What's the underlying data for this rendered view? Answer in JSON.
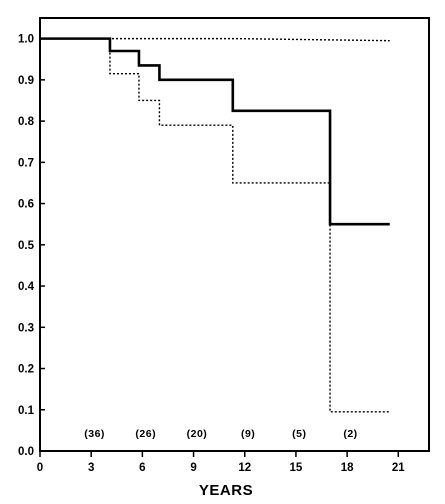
{
  "chart_data": {
    "type": "line",
    "title": "",
    "xlabel": "YEARS",
    "ylabel": "",
    "xlim": [
      0,
      22.8
    ],
    "ylim": [
      0,
      1.05
    ],
    "x_ticks": [
      0,
      3,
      6,
      9,
      12,
      15,
      18,
      21
    ],
    "y_ticks": [
      "0.0",
      "0.1",
      "0.2",
      "0.3",
      "0.4",
      "0.5",
      "0.6",
      "0.7",
      "0.8",
      "0.9",
      "1.0"
    ],
    "grid": false,
    "legend": "none",
    "series": [
      {
        "style": "solid",
        "line_type": "step",
        "x": [
          0,
          4.1,
          5.8,
          7.0,
          11.3,
          17.0,
          20.5
        ],
        "y": [
          1.0,
          0.97,
          0.935,
          0.9,
          0.825,
          0.55,
          0.55
        ]
      },
      {
        "style": "dotted",
        "line_type": "step",
        "x": [
          0,
          4.1,
          5.8,
          7.0,
          11.3,
          17.0,
          20.5
        ],
        "y": [
          1.0,
          0.915,
          0.85,
          0.79,
          0.65,
          0.095,
          0.095
        ]
      },
      {
        "style": "dotted",
        "line_type": "line",
        "x": [
          0,
          11.5,
          20.5
        ],
        "y": [
          1.0,
          1.0,
          0.995
        ]
      }
    ],
    "at_risk": [
      {
        "x": 3.2,
        "label": "(36)"
      },
      {
        "x": 6.2,
        "label": "(26)"
      },
      {
        "x": 9.2,
        "label": "(20)"
      },
      {
        "x": 12.2,
        "label": "(9)"
      },
      {
        "x": 15.2,
        "label": "(5)"
      },
      {
        "x": 18.2,
        "label": "(2)"
      }
    ]
  }
}
